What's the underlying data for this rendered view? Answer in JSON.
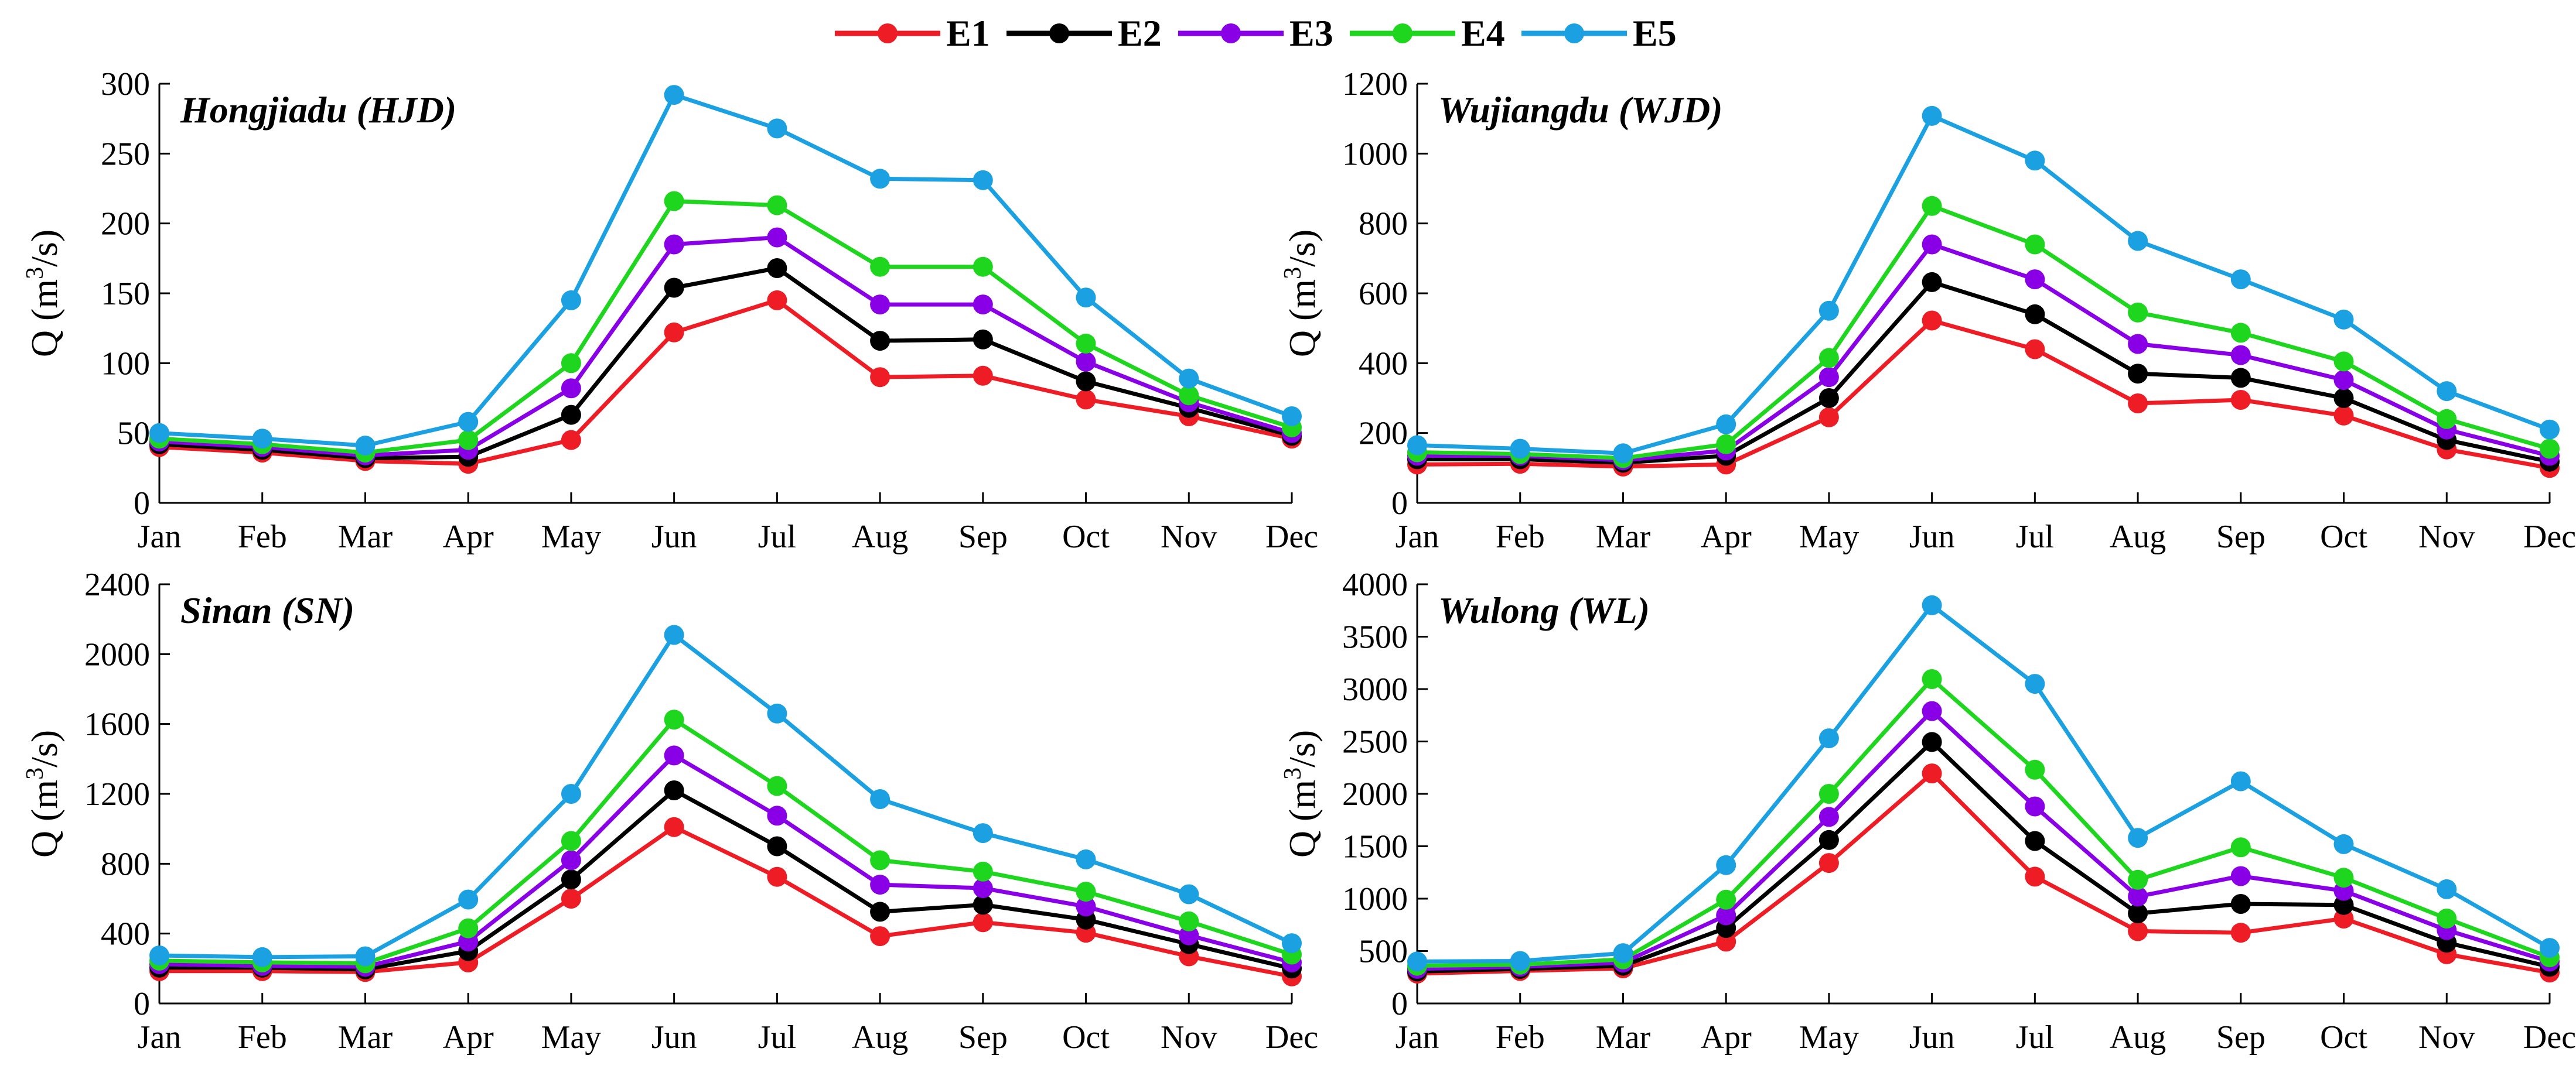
{
  "legend": {
    "entries": [
      {
        "label": "E1",
        "color": "#ee1c25"
      },
      {
        "label": "E2",
        "color": "#000000"
      },
      {
        "label": "E3",
        "color": "#8a00e6"
      },
      {
        "label": "E4",
        "color": "#1ed61e"
      },
      {
        "label": "E5",
        "color": "#1ba1e2"
      }
    ]
  },
  "chart_data": [
    {
      "type": "line",
      "title": "Hongjiadu (HJD)",
      "ylabel_prefix": "Q (m",
      "ylabel_sup": "3",
      "ylabel_suffix": "/s)",
      "categories": [
        "Jan",
        "Feb",
        "Mar",
        "Apr",
        "May",
        "Jun",
        "Jul",
        "Aug",
        "Sep",
        "Oct",
        "Nov",
        "Dec"
      ],
      "ylim": [
        0,
        300
      ],
      "yticks": [
        0,
        50,
        100,
        150,
        200,
        250,
        300
      ],
      "ytick_labels": [
        "0",
        "50",
        "100",
        "150",
        "200",
        "250",
        "300"
      ],
      "series": [
        {
          "name": "E1",
          "color": "#ee1c25",
          "values": [
            40,
            36,
            30,
            28,
            45,
            122,
            145,
            90,
            91,
            74,
            62,
            46
          ]
        },
        {
          "name": "E2",
          "color": "#000000",
          "values": [
            42,
            38,
            32,
            33,
            63,
            154,
            168,
            116,
            117,
            87,
            68,
            48
          ]
        },
        {
          "name": "E3",
          "color": "#8a00e6",
          "values": [
            44,
            40,
            34,
            38,
            82,
            185,
            190,
            142,
            142,
            101,
            72,
            50
          ]
        },
        {
          "name": "E4",
          "color": "#1ed61e",
          "values": [
            46,
            42,
            36,
            45,
            100,
            216,
            213,
            169,
            169,
            114,
            77,
            54
          ]
        },
        {
          "name": "E5",
          "color": "#1ba1e2",
          "values": [
            50,
            46,
            41,
            58,
            145,
            292,
            268,
            232,
            231,
            147,
            89,
            62
          ]
        }
      ]
    },
    {
      "type": "line",
      "title": "Wujiangdu (WJD)",
      "ylabel_prefix": "Q (m",
      "ylabel_sup": "3",
      "ylabel_suffix": "/s)",
      "categories": [
        "Jan",
        "Feb",
        "Mar",
        "Apr",
        "May",
        "Jun",
        "Jul",
        "Aug",
        "Sep",
        "Oct",
        "Nov",
        "Dec"
      ],
      "ylim": [
        0,
        1200
      ],
      "yticks": [
        0,
        200,
        400,
        600,
        800,
        1000,
        1200
      ],
      "ytick_labels": [
        "0",
        "200",
        "400",
        "600",
        "800",
        "1000",
        "1200"
      ],
      "series": [
        {
          "name": "E1",
          "color": "#ee1c25",
          "values": [
            110,
            112,
            104,
            110,
            245,
            522,
            440,
            285,
            295,
            250,
            153,
            100
          ]
        },
        {
          "name": "E2",
          "color": "#000000",
          "values": [
            125,
            125,
            115,
            135,
            300,
            632,
            540,
            370,
            358,
            300,
            180,
            118
          ]
        },
        {
          "name": "E3",
          "color": "#8a00e6",
          "values": [
            135,
            135,
            122,
            150,
            360,
            740,
            640,
            455,
            423,
            352,
            210,
            135
          ]
        },
        {
          "name": "E4",
          "color": "#1ed61e",
          "values": [
            145,
            140,
            128,
            168,
            415,
            850,
            740,
            545,
            487,
            405,
            240,
            155
          ]
        },
        {
          "name": "E5",
          "color": "#1ba1e2",
          "values": [
            165,
            155,
            142,
            225,
            550,
            1108,
            980,
            750,
            640,
            525,
            320,
            210
          ]
        }
      ]
    },
    {
      "type": "line",
      "title": "Sinan (SN)",
      "ylabel_prefix": "Q (m",
      "ylabel_sup": "3",
      "ylabel_suffix": "/s)",
      "categories": [
        "Jan",
        "Feb",
        "Mar",
        "Apr",
        "May",
        "Jun",
        "Jul",
        "Aug",
        "Sep",
        "Oct",
        "Nov",
        "Dec"
      ],
      "ylim": [
        0,
        2400
      ],
      "yticks": [
        0,
        400,
        800,
        1200,
        1600,
        2000,
        2400
      ],
      "ytick_labels": [
        "0",
        "400",
        "800",
        "1200",
        "1600",
        "2000",
        "2400"
      ],
      "series": [
        {
          "name": "E1",
          "color": "#ee1c25",
          "values": [
            185,
            185,
            180,
            235,
            600,
            1010,
            725,
            385,
            465,
            405,
            270,
            155
          ]
        },
        {
          "name": "E2",
          "color": "#000000",
          "values": [
            205,
            205,
            195,
            300,
            710,
            1220,
            900,
            525,
            565,
            480,
            340,
            200
          ]
        },
        {
          "name": "E3",
          "color": "#8a00e6",
          "values": [
            225,
            215,
            210,
            355,
            820,
            1420,
            1075,
            680,
            660,
            555,
            390,
            235
          ]
        },
        {
          "name": "E4",
          "color": "#1ed61e",
          "values": [
            245,
            235,
            230,
            430,
            930,
            1625,
            1245,
            820,
            755,
            640,
            470,
            280
          ]
        },
        {
          "name": "E5",
          "color": "#1ba1e2",
          "values": [
            275,
            265,
            270,
            595,
            1200,
            2110,
            1660,
            1170,
            975,
            825,
            625,
            345
          ]
        }
      ]
    },
    {
      "type": "line",
      "title": "Wulong (WL)",
      "ylabel_prefix": "Q (m",
      "ylabel_sup": "3",
      "ylabel_suffix": "/s)",
      "categories": [
        "Jan",
        "Feb",
        "Mar",
        "Apr",
        "May",
        "Jun",
        "Jul",
        "Aug",
        "Sep",
        "Oct",
        "Nov",
        "Dec"
      ],
      "ylim": [
        0,
        4000
      ],
      "yticks": [
        0,
        500,
        1000,
        1500,
        2000,
        2500,
        3000,
        3500,
        4000
      ],
      "ytick_labels": [
        "0",
        "500",
        "1000",
        "1500",
        "2000",
        "2500",
        "3000",
        "3500",
        "4000"
      ],
      "series": [
        {
          "name": "E1",
          "color": "#ee1c25",
          "values": [
            285,
            310,
            335,
            590,
            1340,
            2195,
            1210,
            690,
            675,
            810,
            470,
            295
          ]
        },
        {
          "name": "E2",
          "color": "#000000",
          "values": [
            305,
            330,
            360,
            720,
            1560,
            2495,
            1550,
            860,
            950,
            940,
            580,
            350
          ]
        },
        {
          "name": "E3",
          "color": "#8a00e6",
          "values": [
            330,
            350,
            390,
            840,
            1780,
            2790,
            1880,
            1020,
            1215,
            1075,
            700,
            400
          ]
        },
        {
          "name": "E4",
          "color": "#1ed61e",
          "values": [
            360,
            370,
            420,
            990,
            2000,
            3095,
            2230,
            1180,
            1490,
            1200,
            810,
            440
          ]
        },
        {
          "name": "E5",
          "color": "#1ba1e2",
          "values": [
            400,
            405,
            480,
            1320,
            2530,
            3800,
            3050,
            1580,
            2120,
            1520,
            1090,
            530
          ]
        }
      ]
    }
  ]
}
